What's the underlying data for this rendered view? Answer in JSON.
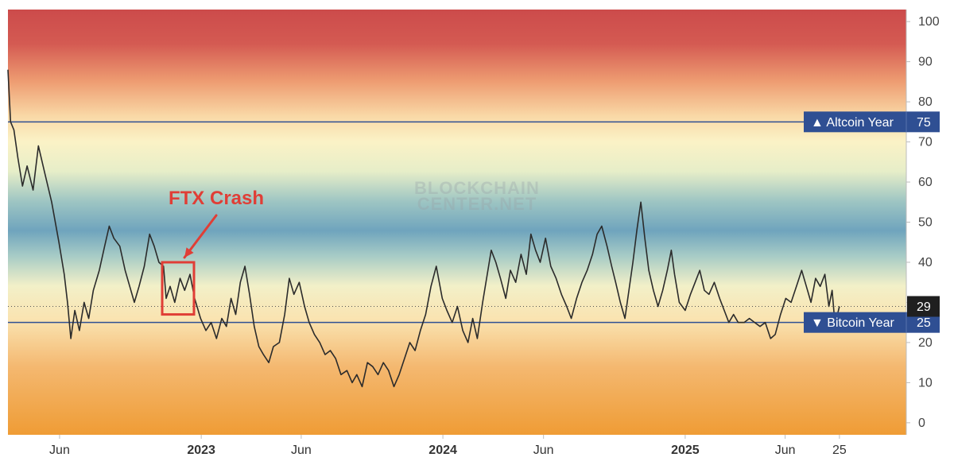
{
  "chart_data": {
    "type": "line",
    "watermark": [
      "BLOCKCHAIN",
      "CENTER.NET"
    ],
    "y_axis": {
      "ylim": [
        -3,
        103
      ],
      "ticks": [
        "0",
        "10",
        "20",
        "30",
        "40",
        "50",
        "60",
        "70",
        "80",
        "90",
        "100"
      ],
      "position": "right"
    },
    "x_axis": {
      "xlim": [
        "2022-03-15",
        "2025-12-01"
      ],
      "ticks": [
        {
          "label": "Jun",
          "date": "2022-06-01",
          "bold": false
        },
        {
          "label": "2023",
          "date": "2023-01-01",
          "bold": true
        },
        {
          "label": "Jun",
          "date": "2023-06-01",
          "bold": false
        },
        {
          "label": "2024",
          "date": "2024-01-01",
          "bold": true
        },
        {
          "label": "Jun",
          "date": "2024-06-01",
          "bold": false
        },
        {
          "label": "2025",
          "date": "2025-01-01",
          "bold": true
        },
        {
          "label": "Jun",
          "date": "2025-06-01",
          "bold": false
        },
        {
          "label": "25",
          "date": "2025-08-22",
          "bold": false
        }
      ]
    },
    "series": [
      {
        "color": "#2b2b2b",
        "points": [
          [
            "2022-03-15",
            88
          ],
          [
            "2022-03-19",
            75
          ],
          [
            "2022-03-24",
            73
          ],
          [
            "2022-03-30",
            66
          ],
          [
            "2022-04-06",
            59
          ],
          [
            "2022-04-13",
            64
          ],
          [
            "2022-04-22",
            58
          ],
          [
            "2022-04-30",
            69
          ],
          [
            "2022-05-10",
            62
          ],
          [
            "2022-05-20",
            55
          ],
          [
            "2022-05-31",
            45
          ],
          [
            "2022-06-08",
            37
          ],
          [
            "2022-06-13",
            30
          ],
          [
            "2022-06-18",
            21
          ],
          [
            "2022-06-24",
            28
          ],
          [
            "2022-07-01",
            23
          ],
          [
            "2022-07-08",
            30
          ],
          [
            "2022-07-15",
            26
          ],
          [
            "2022-07-22",
            33
          ],
          [
            "2022-07-31",
            38
          ],
          [
            "2022-08-08",
            44
          ],
          [
            "2022-08-15",
            49
          ],
          [
            "2022-08-22",
            46
          ],
          [
            "2022-08-31",
            44
          ],
          [
            "2022-09-08",
            38
          ],
          [
            "2022-09-15",
            34
          ],
          [
            "2022-09-22",
            30
          ],
          [
            "2022-09-29",
            34
          ],
          [
            "2022-10-07",
            39
          ],
          [
            "2022-10-15",
            47
          ],
          [
            "2022-10-22",
            44
          ],
          [
            "2022-10-29",
            40
          ],
          [
            "2022-11-05",
            39
          ],
          [
            "2022-11-09",
            31
          ],
          [
            "2022-11-15",
            34
          ],
          [
            "2022-11-22",
            30
          ],
          [
            "2022-11-30",
            36
          ],
          [
            "2022-12-07",
            33
          ],
          [
            "2022-12-15",
            37
          ],
          [
            "2022-12-22",
            31
          ],
          [
            "2022-12-31",
            26
          ],
          [
            "2023-01-08",
            23
          ],
          [
            "2023-01-16",
            25
          ],
          [
            "2023-01-24",
            21
          ],
          [
            "2023-02-01",
            26
          ],
          [
            "2023-02-08",
            24
          ],
          [
            "2023-02-15",
            31
          ],
          [
            "2023-02-22",
            27
          ],
          [
            "2023-03-01",
            35
          ],
          [
            "2023-03-08",
            39
          ],
          [
            "2023-03-15",
            32
          ],
          [
            "2023-03-22",
            24
          ],
          [
            "2023-03-29",
            19
          ],
          [
            "2023-04-05",
            17
          ],
          [
            "2023-04-13",
            15
          ],
          [
            "2023-04-20",
            19
          ],
          [
            "2023-04-29",
            20
          ],
          [
            "2023-05-07",
            27
          ],
          [
            "2023-05-14",
            36
          ],
          [
            "2023-05-21",
            32
          ],
          [
            "2023-05-29",
            35
          ],
          [
            "2023-06-06",
            29
          ],
          [
            "2023-06-13",
            25
          ],
          [
            "2023-06-21",
            22
          ],
          [
            "2023-06-29",
            20
          ],
          [
            "2023-07-07",
            17
          ],
          [
            "2023-07-15",
            18
          ],
          [
            "2023-07-23",
            16
          ],
          [
            "2023-07-31",
            12
          ],
          [
            "2023-08-09",
            13
          ],
          [
            "2023-08-17",
            10
          ],
          [
            "2023-08-24",
            12
          ],
          [
            "2023-09-01",
            9
          ],
          [
            "2023-09-09",
            15
          ],
          [
            "2023-09-17",
            14
          ],
          [
            "2023-09-25",
            12
          ],
          [
            "2023-10-03",
            15
          ],
          [
            "2023-10-11",
            13
          ],
          [
            "2023-10-19",
            9
          ],
          [
            "2023-10-27",
            12
          ],
          [
            "2023-11-04",
            16
          ],
          [
            "2023-11-12",
            20
          ],
          [
            "2023-11-20",
            18
          ],
          [
            "2023-11-28",
            23
          ],
          [
            "2023-12-06",
            27
          ],
          [
            "2023-12-14",
            34
          ],
          [
            "2023-12-22",
            39
          ],
          [
            "2023-12-31",
            31
          ],
          [
            "2024-01-07",
            28
          ],
          [
            "2024-01-15",
            25
          ],
          [
            "2024-01-23",
            29
          ],
          [
            "2024-01-31",
            23
          ],
          [
            "2024-02-08",
            20
          ],
          [
            "2024-02-15",
            26
          ],
          [
            "2024-02-22",
            21
          ],
          [
            "2024-03-01",
            30
          ],
          [
            "2024-03-08",
            37
          ],
          [
            "2024-03-14",
            43
          ],
          [
            "2024-03-21",
            40
          ],
          [
            "2024-03-28",
            36
          ],
          [
            "2024-04-05",
            31
          ],
          [
            "2024-04-12",
            38
          ],
          [
            "2024-04-20",
            35
          ],
          [
            "2024-04-28",
            42
          ],
          [
            "2024-05-06",
            37
          ],
          [
            "2024-05-13",
            47
          ],
          [
            "2024-05-20",
            43
          ],
          [
            "2024-05-27",
            40
          ],
          [
            "2024-06-04",
            46
          ],
          [
            "2024-06-12",
            39
          ],
          [
            "2024-06-20",
            36
          ],
          [
            "2024-06-28",
            32
          ],
          [
            "2024-07-06",
            29
          ],
          [
            "2024-07-13",
            26
          ],
          [
            "2024-07-21",
            31
          ],
          [
            "2024-07-29",
            35
          ],
          [
            "2024-08-06",
            38
          ],
          [
            "2024-08-14",
            42
          ],
          [
            "2024-08-21",
            47
          ],
          [
            "2024-08-28",
            49
          ],
          [
            "2024-09-05",
            44
          ],
          [
            "2024-09-12",
            39
          ],
          [
            "2024-09-18",
            35
          ],
          [
            "2024-09-25",
            30
          ],
          [
            "2024-10-02",
            26
          ],
          [
            "2024-10-08",
            33
          ],
          [
            "2024-10-14",
            40
          ],
          [
            "2024-10-20",
            48
          ],
          [
            "2024-10-26",
            55
          ],
          [
            "2024-11-01",
            46
          ],
          [
            "2024-11-07",
            38
          ],
          [
            "2024-11-14",
            33
          ],
          [
            "2024-11-21",
            29
          ],
          [
            "2024-11-28",
            33
          ],
          [
            "2024-12-05",
            38
          ],
          [
            "2024-12-11",
            43
          ],
          [
            "2024-12-16",
            37
          ],
          [
            "2024-12-23",
            30
          ],
          [
            "2025-01-01",
            28
          ],
          [
            "2025-01-09",
            32
          ],
          [
            "2025-01-16",
            35
          ],
          [
            "2025-01-23",
            38
          ],
          [
            "2025-01-30",
            33
          ],
          [
            "2025-02-06",
            32
          ],
          [
            "2025-02-14",
            35
          ],
          [
            "2025-02-22",
            31
          ],
          [
            "2025-03-01",
            28
          ],
          [
            "2025-03-08",
            25
          ],
          [
            "2025-03-15",
            27
          ],
          [
            "2025-03-22",
            25
          ],
          [
            "2025-03-31",
            25
          ],
          [
            "2025-04-08",
            26
          ],
          [
            "2025-04-16",
            25
          ],
          [
            "2025-04-24",
            24
          ],
          [
            "2025-05-02",
            25
          ],
          [
            "2025-05-10",
            21
          ],
          [
            "2025-05-17",
            22
          ],
          [
            "2025-05-25",
            27
          ],
          [
            "2025-06-02",
            31
          ],
          [
            "2025-06-10",
            30
          ],
          [
            "2025-06-18",
            34
          ],
          [
            "2025-06-26",
            38
          ],
          [
            "2025-07-03",
            34
          ],
          [
            "2025-07-10",
            30
          ],
          [
            "2025-07-17",
            36
          ],
          [
            "2025-07-24",
            34
          ],
          [
            "2025-07-31",
            37
          ],
          [
            "2025-08-06",
            29
          ],
          [
            "2025-08-11",
            33
          ],
          [
            "2025-08-15",
            25
          ],
          [
            "2025-08-19",
            27
          ],
          [
            "2025-08-22",
            29
          ]
        ]
      }
    ],
    "reference_lines": [
      {
        "value": 75,
        "label": "▲ Altcoin Year",
        "value_label": "75",
        "color": "#2f4f93"
      },
      {
        "value": 25,
        "label": "▼ Bitcoin Year",
        "value_label": "25",
        "color": "#2f4f93"
      }
    ],
    "current_value": {
      "value": 29,
      "label": "29"
    },
    "annotation": {
      "text": "FTX Crash",
      "color": "#e03e36",
      "box": {
        "x0": "2022-11-03",
        "x1": "2022-12-21",
        "y0": 27,
        "y1": 40
      }
    },
    "background": "vertical color gradient: red at 100, orange/cream near 75, yellow ~70, teal-blue ~50, pale ~35, orange toward 0"
  }
}
